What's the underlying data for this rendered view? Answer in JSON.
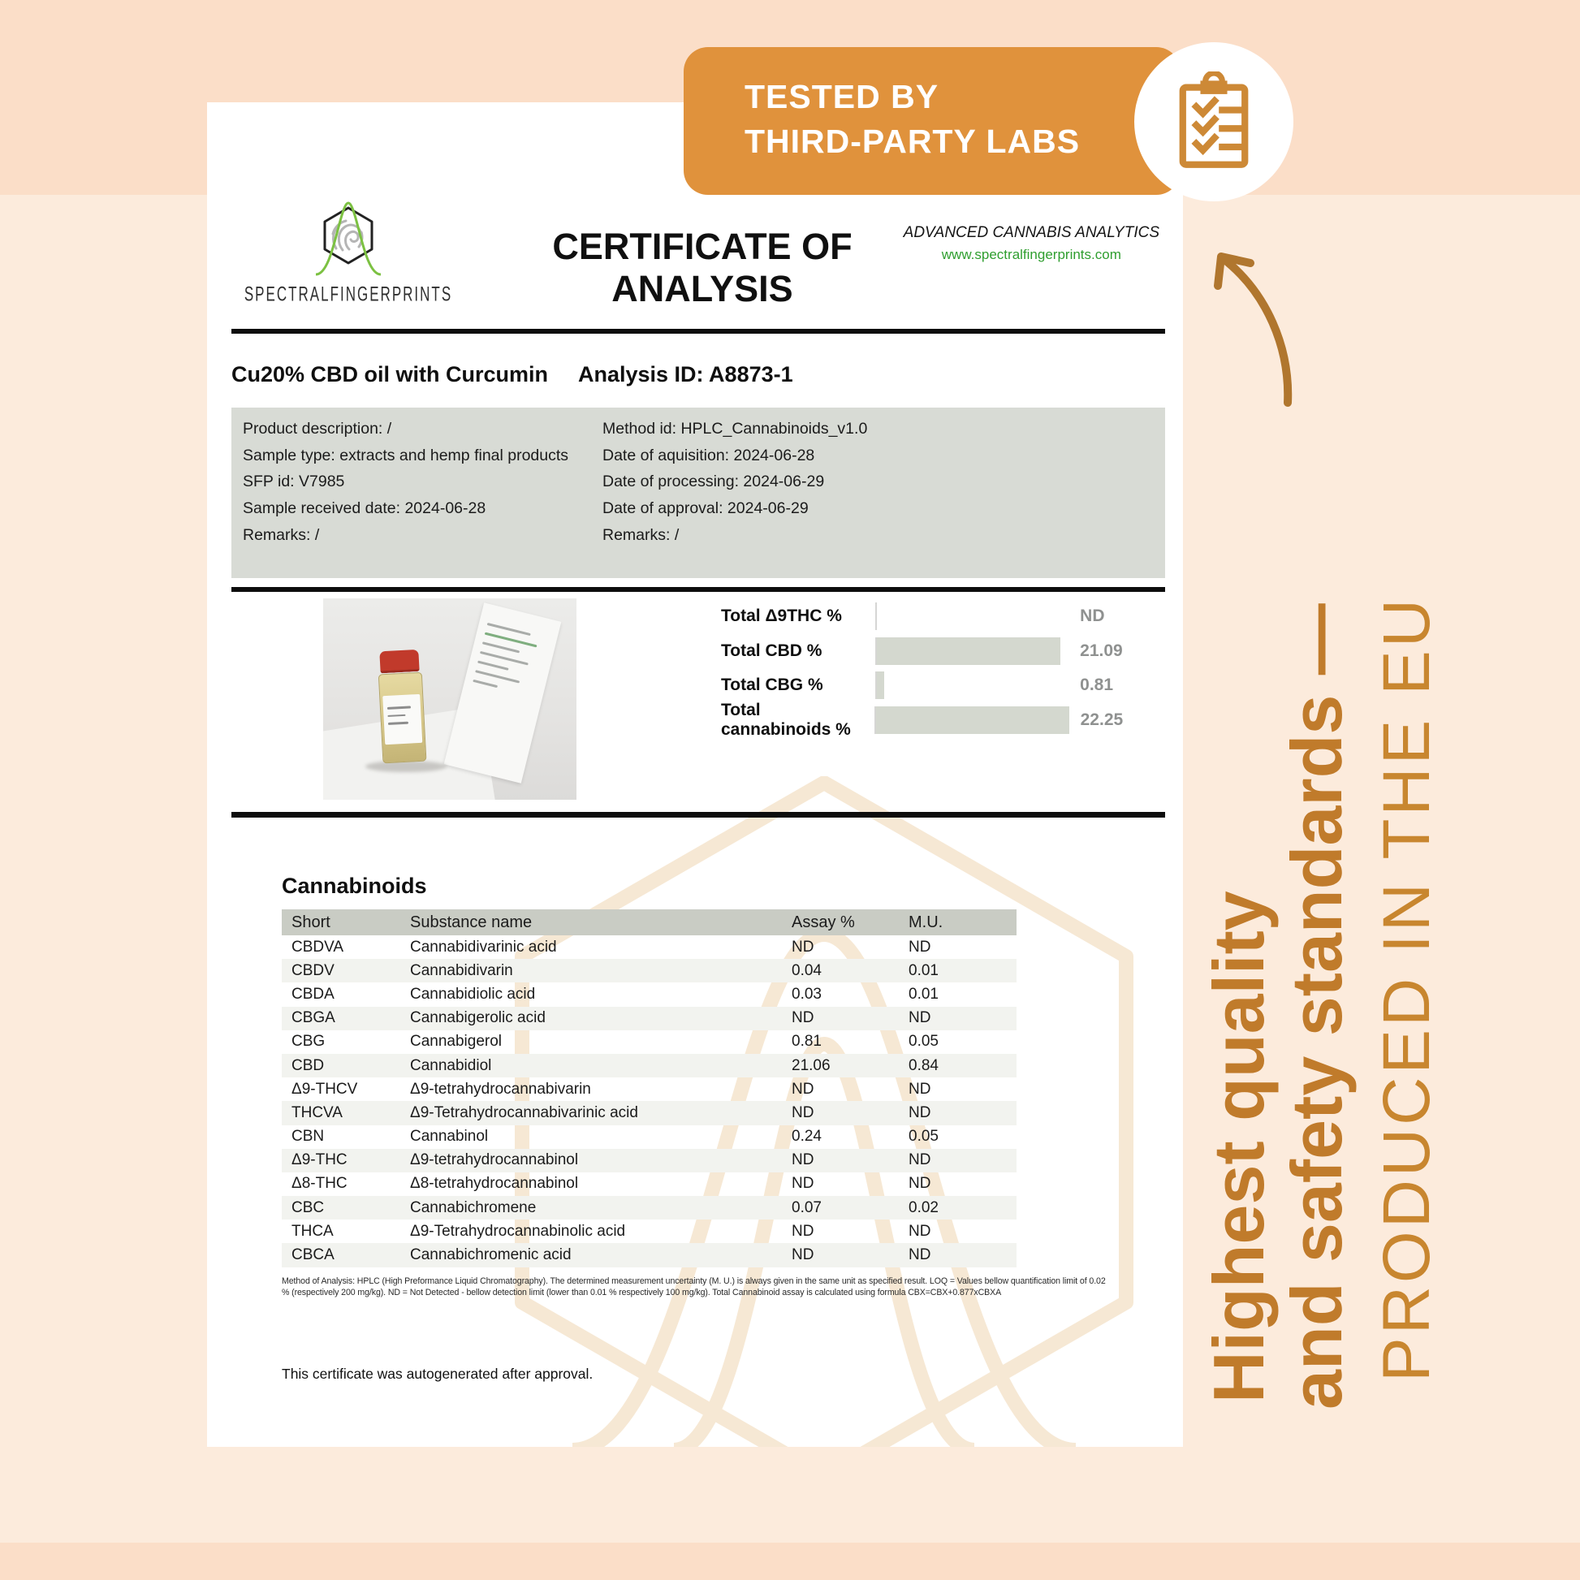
{
  "badge": {
    "line1": "TESTED BY",
    "line2": "THIRD-PARTY LABS",
    "icon": "clipboard-checklist-icon"
  },
  "side_text": {
    "bold_line1": "Highest quality",
    "bold_line2": "and safety standards —",
    "light_line": "PRODUCED IN THE EU"
  },
  "header": {
    "logo_text": "SPECTRALFINGERPRINTS",
    "title": "CERTIFICATE OF ANALYSIS",
    "tagline": "ADVANCED CANNABIS ANALYTICS",
    "website": "www.spectralfingerprints.com"
  },
  "sample": {
    "product_name": "Cu20% CBD oil with Curcumin",
    "analysis_id": "Analysis ID: A8873-1",
    "left_details": [
      "Product description: /",
      "Sample type: extracts and hemp final products",
      "SFP id: V7985",
      "Sample received date: 2024-06-28",
      "Remarks: /"
    ],
    "right_details": [
      "Method id: HPLC_Cannabinoids_v1.0",
      "Date of aquisition: 2024-06-28",
      "Date of processing: 2024-06-29",
      "Date of approval: 2024-06-29",
      "Remarks: /"
    ]
  },
  "chart_data": {
    "type": "bar",
    "orientation": "horizontal",
    "categories": [
      "Total Δ9THC %",
      "Total CBD %",
      "Total CBG %",
      "Total cannabinoids %"
    ],
    "values": [
      null,
      21.09,
      0.81,
      22.25
    ],
    "value_labels": [
      "ND",
      "21.09",
      "0.81",
      "22.25"
    ],
    "xlim": [
      0,
      22.25
    ],
    "bar_color": "#d4d8cf",
    "grid": false,
    "legend": false
  },
  "table": {
    "section_title": "Cannabinoids",
    "columns": [
      "Short",
      "Substance name",
      "Assay %",
      "M.U."
    ],
    "rows": [
      [
        "CBDVA",
        "Cannabidivarinic acid",
        "ND",
        "ND"
      ],
      [
        "CBDV",
        "Cannabidivarin",
        "0.04",
        "0.01"
      ],
      [
        "CBDA",
        "Cannabidiolic acid",
        "0.03",
        "0.01"
      ],
      [
        "CBGA",
        "Cannabigerolic acid",
        "ND",
        "ND"
      ],
      [
        "CBG",
        "Cannabigerol",
        "0.81",
        "0.05"
      ],
      [
        "CBD",
        "Cannabidiol",
        "21.06",
        "0.84"
      ],
      [
        "Δ9-THCV",
        "Δ9-tetrahydrocannabivarin",
        "ND",
        "ND"
      ],
      [
        "THCVA",
        "Δ9-Tetrahydrocannabivarinic acid",
        "ND",
        "ND"
      ],
      [
        "CBN",
        "Cannabinol",
        "0.24",
        "0.05"
      ],
      [
        "Δ9-THC",
        "Δ9-tetrahydrocannabinol",
        "ND",
        "ND"
      ],
      [
        "Δ8-THC",
        "Δ8-tetrahydrocannabinol",
        "ND",
        "ND"
      ],
      [
        "CBC",
        "Cannabichromene",
        "0.07",
        "0.02"
      ],
      [
        "THCA",
        "Δ9-Tetrahydrocannabinolic acid",
        "ND",
        "ND"
      ],
      [
        "CBCA",
        "Cannabichromenic acid",
        "ND",
        "ND"
      ]
    ]
  },
  "footnote": "Method of Analysis: HPLC (High Preformance Liquid Chromatography). The determined measurement uncertainty (M. U.) is always given in the same unit as specified result. LOQ = Values bellow quantification limit of 0.02 % (respectively 200 mg/kg). ND = Not Detected - bellow detection limit (lower than 0.01 % respectively 100 mg/kg). Total Cannabinoid assay is calculated using formula CBX=CBX+0.877xCBXA",
  "footer_note": "This certificate was autogenerated after approval.",
  "colors": {
    "accent_orange": "#e0923c",
    "side_text_orange": "#c07b2b",
    "background_peach": "#fcebdc",
    "band_peach": "#fbdec8",
    "info_box_gray": "#d8dbd5",
    "bar_gray_green": "#d4d8cf",
    "link_green": "#2f9e2f",
    "logo_curve_green": "#7cc142"
  }
}
